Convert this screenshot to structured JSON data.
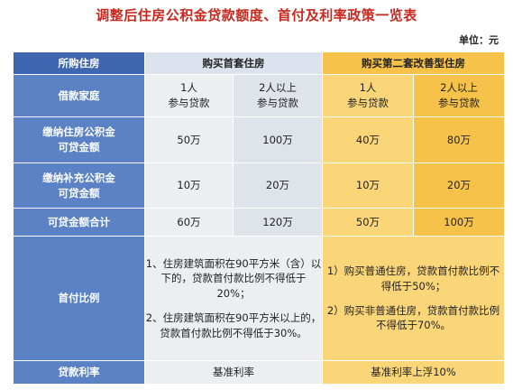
{
  "title": "调整后住房公积金贷款额度、首付及利率政策一览表",
  "unit": "单位：元",
  "header": {
    "col0": "所购住房",
    "first_home": "购买首套住房",
    "second_home": "购买第二套改善型住房"
  },
  "borrower_row": {
    "label": "借款家庭",
    "c1": "1人\n参与贷款",
    "c2": "2人以上\n参与贷款",
    "c3": "1人\n参与贷款",
    "c4": "2人以上\n参与贷款"
  },
  "rows": [
    {
      "label": "缴纳住房公积金\n可贷金额",
      "values": [
        "50万",
        "100万",
        "40万",
        "80万"
      ]
    },
    {
      "label": "缴纳补充公积金\n可贷金额",
      "values": [
        "10万",
        "20万",
        "10万",
        "20万"
      ]
    },
    {
      "label": "可贷金额合计",
      "values": [
        "60万",
        "120万",
        "50万",
        "100万"
      ]
    }
  ],
  "down_payment": {
    "label": "首付比例",
    "first_home_p1": "1、住房建筑面积在90平方米（含）以下的，贷款首付款比例不得低于20%；",
    "first_home_p2": "2、住房建筑面积在90平方米以上的，贷款首付款比例不得低于30%。",
    "second_home_p1": "1）购买普通住房，贷款首付款比例不得低于50%；",
    "second_home_p2": "2）购买非普通住房，贷款首付款比例不得低于70%。"
  },
  "interest": {
    "label": "贷款利率",
    "first_home": "基准利率",
    "second_home": "基准利率上浮10%"
  }
}
